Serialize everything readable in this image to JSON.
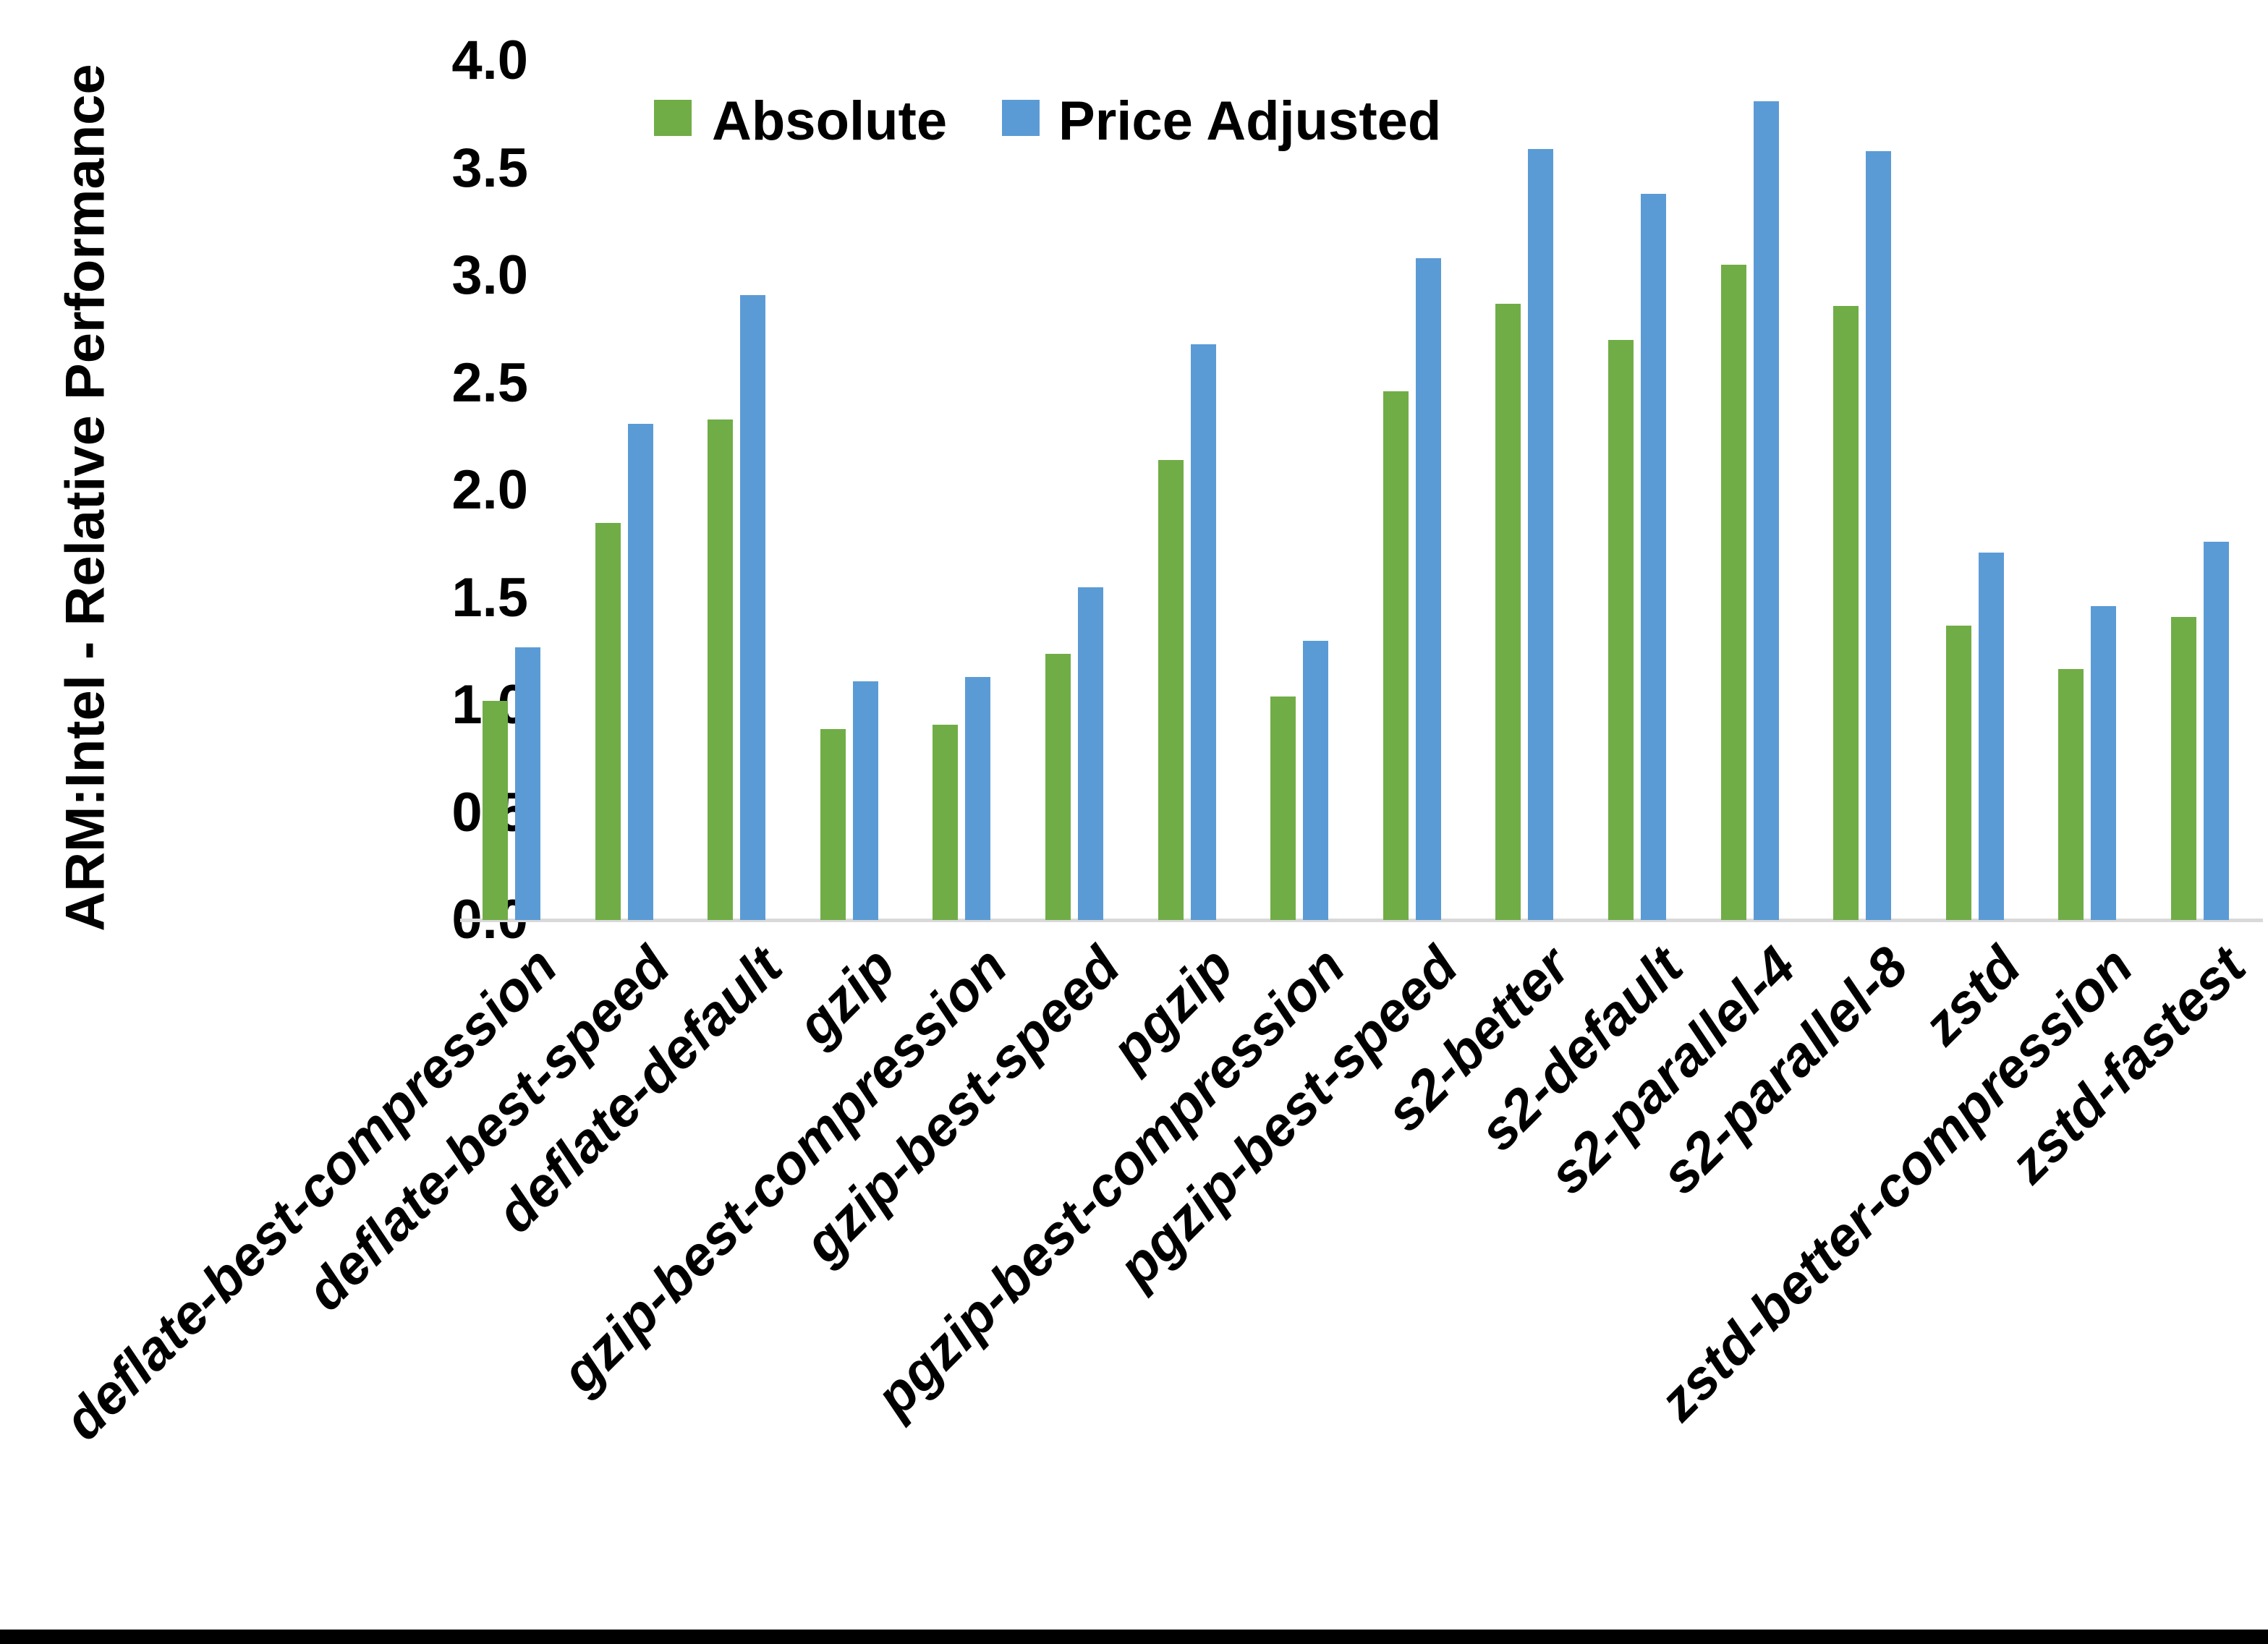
{
  "chart_data": {
    "type": "bar",
    "title": "",
    "ylabel": "ARM:Intel - Relative Performance",
    "xlabel": "",
    "categories": [
      "deflate-best-compression",
      "deflate-best-speed",
      "deflate-default",
      "gzip",
      "gzip-best-compression",
      "gzip-best-speed",
      "pgzip",
      "pgzip-best-compression",
      "pgzip-best-speed",
      "s2-better",
      "s2-default",
      "s2-parallel-4",
      "s2-parallel-8",
      "zstd",
      "zstd-better-compression",
      "zstd-fastest"
    ],
    "series": [
      {
        "name": "Absolute",
        "color": "#70AD47",
        "values": [
          1.02,
          1.85,
          2.33,
          0.89,
          0.91,
          1.24,
          2.14,
          1.04,
          2.46,
          2.87,
          2.7,
          3.05,
          2.86,
          1.37,
          1.17,
          1.41
        ]
      },
      {
        "name": "Price Adjusted",
        "color": "#5B9BD5",
        "values": [
          1.27,
          2.31,
          2.91,
          1.11,
          1.13,
          1.55,
          2.68,
          1.3,
          3.08,
          3.59,
          3.38,
          3.81,
          3.58,
          1.71,
          1.46,
          1.76
        ]
      }
    ],
    "ylim": [
      0.0,
      4.0
    ],
    "ytick_step": 0.5,
    "ytick_labels": [
      "0.0",
      "0.5",
      "1.0",
      "1.5",
      "2.0",
      "2.5",
      "3.0",
      "3.5",
      "4.0"
    ],
    "grid": false,
    "legend_position": "top-center",
    "x_label_rotation_deg": 45,
    "axis_line_color": "#D9D9D9",
    "text_color": "#000000"
  },
  "frame": {
    "bottom_bar_color": "#000000"
  }
}
